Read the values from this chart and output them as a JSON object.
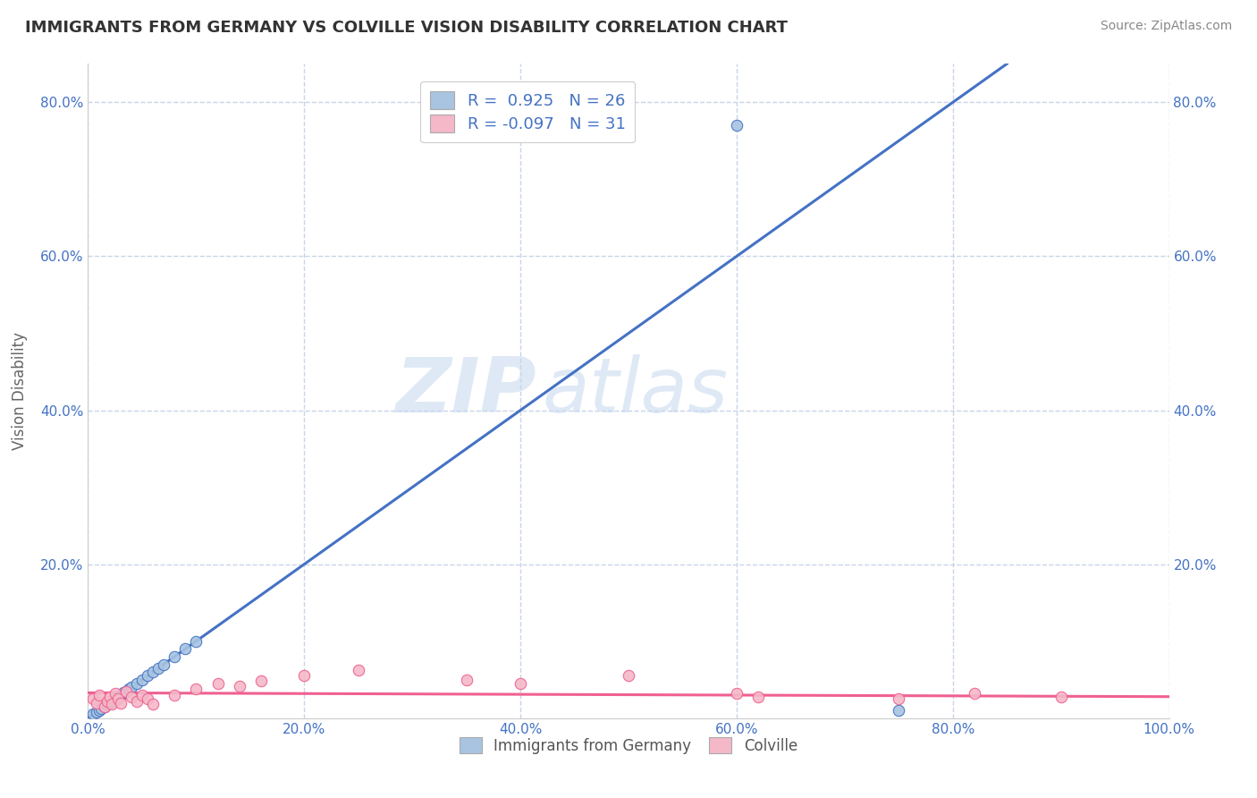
{
  "title": "IMMIGRANTS FROM GERMANY VS COLVILLE VISION DISABILITY CORRELATION CHART",
  "source": "Source: ZipAtlas.com",
  "ylabel": "Vision Disability",
  "xlim": [
    0.0,
    1.0
  ],
  "ylim": [
    0.0,
    0.85
  ],
  "x_tick_labels": [
    "0.0%",
    "20.0%",
    "40.0%",
    "60.0%",
    "80.0%",
    "100.0%"
  ],
  "x_tick_vals": [
    0.0,
    0.2,
    0.4,
    0.6,
    0.8,
    1.0
  ],
  "y_tick_labels": [
    "20.0%",
    "40.0%",
    "60.0%",
    "80.0%"
  ],
  "y_tick_vals": [
    0.2,
    0.4,
    0.6,
    0.8
  ],
  "color_blue": "#a8c4e0",
  "color_pink": "#f4b8c8",
  "line_blue": "#4472c4",
  "line_pink": "#f06090",
  "watermark_zip": "ZIP",
  "watermark_atlas": "atlas",
  "blue_scatter_x": [
    0.005,
    0.008,
    0.01,
    0.012,
    0.015,
    0.018,
    0.02,
    0.022,
    0.025,
    0.028,
    0.03,
    0.033,
    0.035,
    0.038,
    0.04,
    0.045,
    0.05,
    0.055,
    0.06,
    0.065,
    0.07,
    0.08,
    0.09,
    0.1,
    0.6,
    0.75
  ],
  "blue_scatter_y": [
    0.005,
    0.008,
    0.01,
    0.012,
    0.015,
    0.018,
    0.02,
    0.022,
    0.025,
    0.028,
    0.03,
    0.033,
    0.035,
    0.038,
    0.04,
    0.045,
    0.05,
    0.055,
    0.06,
    0.065,
    0.07,
    0.08,
    0.09,
    0.1,
    0.77,
    0.01
  ],
  "pink_scatter_x": [
    0.005,
    0.008,
    0.01,
    0.015,
    0.018,
    0.02,
    0.022,
    0.025,
    0.028,
    0.03,
    0.035,
    0.04,
    0.045,
    0.05,
    0.055,
    0.06,
    0.08,
    0.1,
    0.12,
    0.14,
    0.16,
    0.2,
    0.25,
    0.35,
    0.4,
    0.5,
    0.6,
    0.62,
    0.75,
    0.82,
    0.9
  ],
  "pink_scatter_y": [
    0.025,
    0.02,
    0.03,
    0.015,
    0.022,
    0.028,
    0.018,
    0.032,
    0.025,
    0.02,
    0.035,
    0.028,
    0.022,
    0.03,
    0.025,
    0.018,
    0.03,
    0.038,
    0.045,
    0.042,
    0.048,
    0.055,
    0.062,
    0.05,
    0.045,
    0.055,
    0.032,
    0.028,
    0.025,
    0.032,
    0.028
  ],
  "blue_line_x": [
    0.0,
    0.85
  ],
  "blue_line_y": [
    0.0,
    0.85
  ],
  "pink_line_y0": 0.033,
  "pink_line_y1": 0.028,
  "bg_color": "#ffffff",
  "grid_color": "#c8d4e8",
  "title_color": "#333333",
  "tick_color": "#4472c4",
  "legend_color": "#4472c4"
}
